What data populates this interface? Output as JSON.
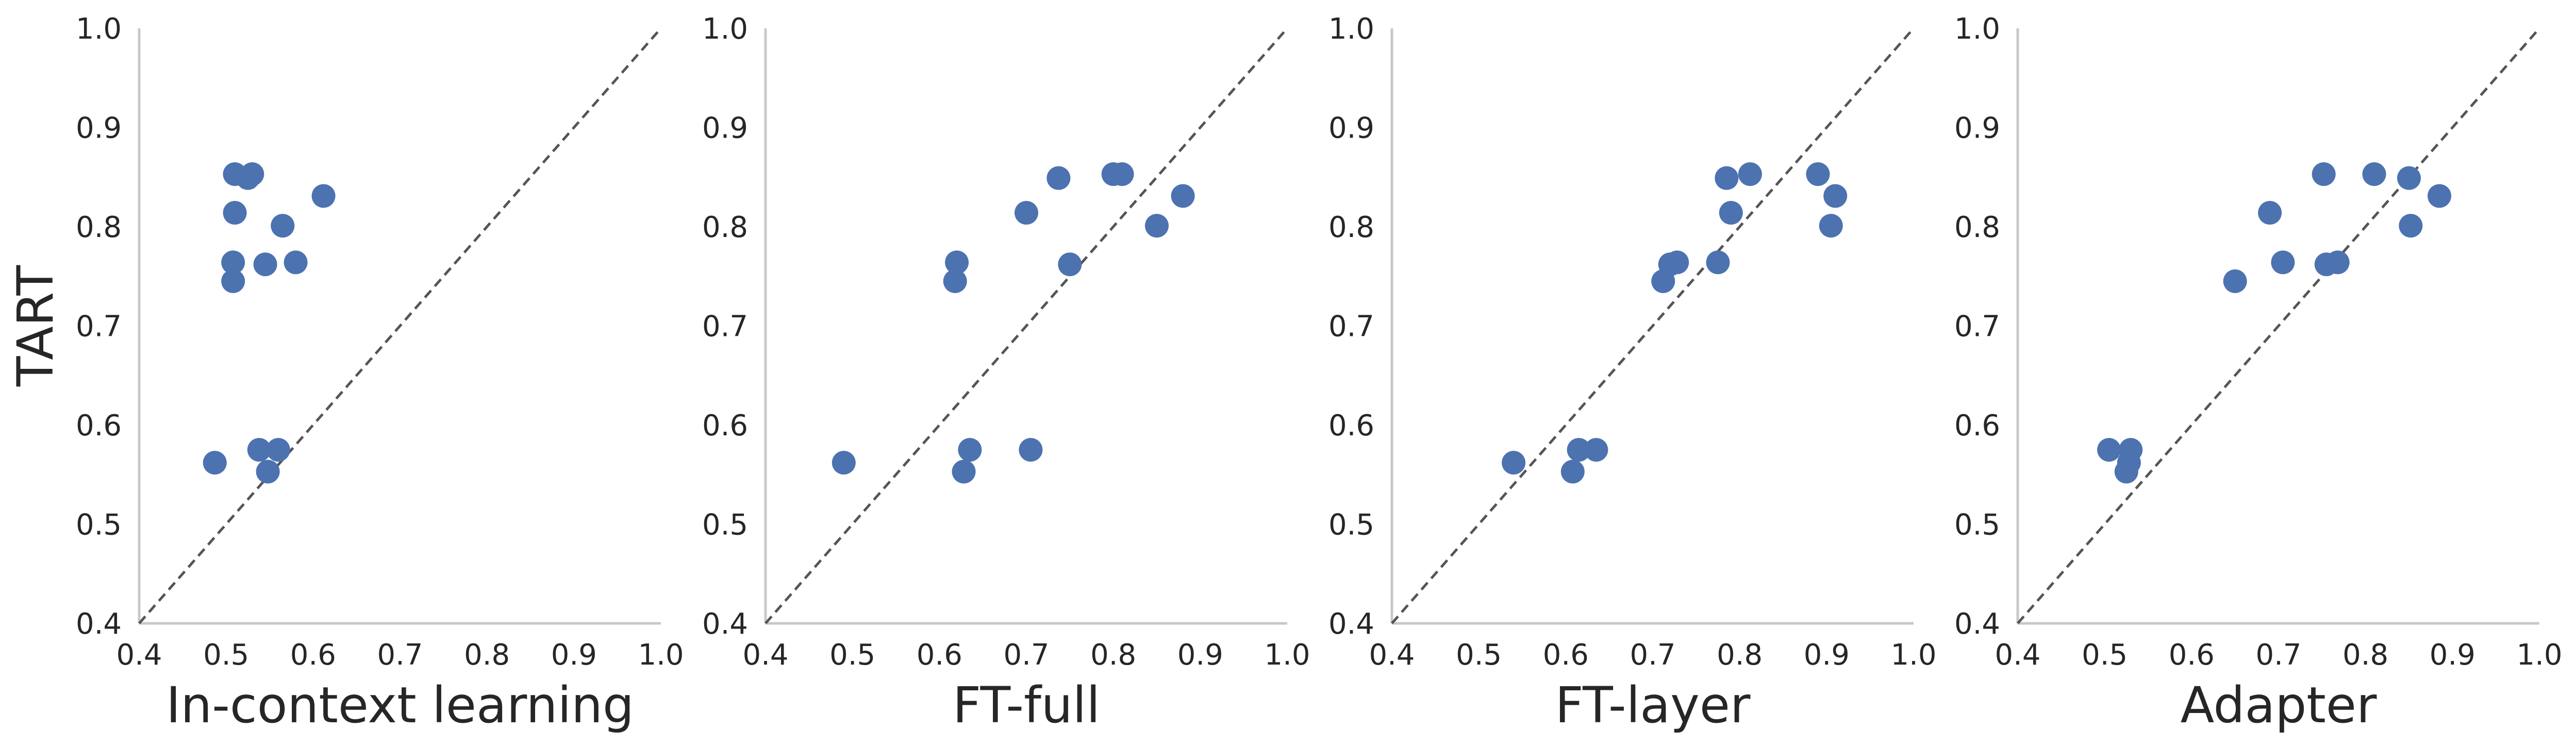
{
  "chart_data": [
    {
      "type": "scatter",
      "xlabel": "In-context learning",
      "ylabel": "TART",
      "xlim": [
        0.4,
        1.0
      ],
      "ylim": [
        0.4,
        1.0
      ],
      "xticks": [
        "0.4",
        "0.5",
        "0.6",
        "0.7",
        "0.8",
        "0.9",
        "1.0"
      ],
      "yticks": [
        "0.4",
        "0.5",
        "0.6",
        "0.7",
        "0.8",
        "0.9",
        "1.0"
      ],
      "reference_line": "y = x",
      "grid": false,
      "series": [
        {
          "color": "#4c72b0",
          "points": [
            [
              0.51,
              0.853
            ],
            [
              0.53,
              0.853
            ],
            [
              0.525,
              0.849
            ],
            [
              0.51,
              0.814
            ],
            [
              0.565,
              0.801
            ],
            [
              0.612,
              0.831
            ],
            [
              0.508,
              0.764
            ],
            [
              0.545,
              0.762
            ],
            [
              0.58,
              0.764
            ],
            [
              0.508,
              0.745
            ],
            [
              0.487,
              0.562
            ],
            [
              0.538,
              0.575
            ],
            [
              0.56,
              0.575
            ],
            [
              0.548,
              0.553
            ]
          ]
        }
      ]
    },
    {
      "type": "scatter",
      "xlabel": "FT-full",
      "ylabel": "",
      "xlim": [
        0.4,
        1.0
      ],
      "ylim": [
        0.4,
        1.0
      ],
      "xticks": [
        "0.4",
        "0.5",
        "0.6",
        "0.7",
        "0.8",
        "0.9",
        "1.0"
      ],
      "yticks": [
        "0.4",
        "0.5",
        "0.6",
        "0.7",
        "0.8",
        "0.9",
        "1.0"
      ],
      "reference_line": "y = x",
      "grid": false,
      "series": [
        {
          "color": "#4c72b0",
          "points": [
            [
              0.737,
              0.849
            ],
            [
              0.8,
              0.853
            ],
            [
              0.81,
              0.853
            ],
            [
              0.88,
              0.831
            ],
            [
              0.7,
              0.814
            ],
            [
              0.85,
              0.801
            ],
            [
              0.75,
              0.762
            ],
            [
              0.62,
              0.764
            ],
            [
              0.618,
              0.745
            ],
            [
              0.49,
              0.562
            ],
            [
              0.635,
              0.575
            ],
            [
              0.705,
              0.575
            ],
            [
              0.628,
              0.553
            ]
          ]
        }
      ]
    },
    {
      "type": "scatter",
      "xlabel": "FT-layer",
      "ylabel": "",
      "xlim": [
        0.4,
        1.0
      ],
      "ylim": [
        0.4,
        1.0
      ],
      "xticks": [
        "0.4",
        "0.5",
        "0.6",
        "0.7",
        "0.8",
        "0.9",
        "1.0"
      ],
      "yticks": [
        "0.4",
        "0.5",
        "0.6",
        "0.7",
        "0.8",
        "0.9",
        "1.0"
      ],
      "reference_line": "y = x",
      "grid": false,
      "series": [
        {
          "color": "#4c72b0",
          "points": [
            [
              0.785,
              0.849
            ],
            [
              0.812,
              0.853
            ],
            [
              0.89,
              0.853
            ],
            [
              0.91,
              0.831
            ],
            [
              0.79,
              0.814
            ],
            [
              0.905,
              0.801
            ],
            [
              0.72,
              0.762
            ],
            [
              0.728,
              0.764
            ],
            [
              0.775,
              0.764
            ],
            [
              0.712,
              0.745
            ],
            [
              0.54,
              0.562
            ],
            [
              0.615,
              0.575
            ],
            [
              0.635,
              0.575
            ],
            [
              0.608,
              0.553
            ]
          ]
        }
      ]
    },
    {
      "type": "scatter",
      "xlabel": "Adapter",
      "ylabel": "",
      "xlim": [
        0.4,
        1.0
      ],
      "ylim": [
        0.4,
        1.0
      ],
      "xticks": [
        "0.4",
        "0.5",
        "0.6",
        "0.7",
        "0.8",
        "0.9",
        "1.0"
      ],
      "yticks": [
        "0.4",
        "0.5",
        "0.6",
        "0.7",
        "0.8",
        "0.9",
        "1.0"
      ],
      "reference_line": "y = x",
      "grid": false,
      "series": [
        {
          "color": "#4c72b0",
          "points": [
            [
              0.752,
              0.853
            ],
            [
              0.81,
              0.853
            ],
            [
              0.85,
              0.849
            ],
            [
              0.885,
              0.831
            ],
            [
              0.69,
              0.814
            ],
            [
              0.852,
              0.801
            ],
            [
              0.705,
              0.764
            ],
            [
              0.755,
              0.762
            ],
            [
              0.768,
              0.764
            ],
            [
              0.65,
              0.745
            ],
            [
              0.505,
              0.575
            ],
            [
              0.53,
              0.575
            ],
            [
              0.528,
              0.562
            ],
            [
              0.525,
              0.553
            ]
          ]
        }
      ]
    }
  ]
}
